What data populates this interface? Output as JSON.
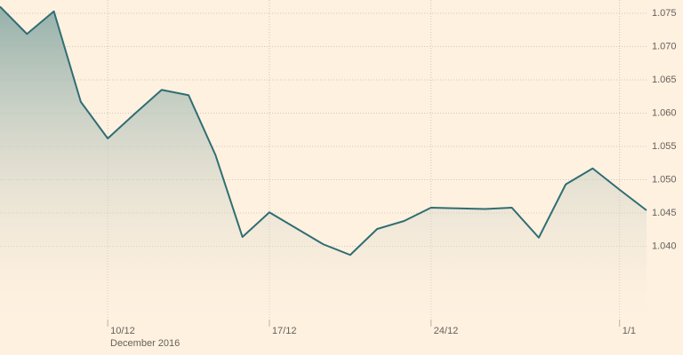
{
  "chart_data": {
    "type": "area",
    "categories": [
      null,
      null,
      null,
      null,
      "10/12",
      null,
      null,
      null,
      null,
      null,
      "17/12",
      null,
      null,
      null,
      null,
      null,
      "24/12",
      null,
      null,
      null,
      null,
      null,
      null,
      "1/1",
      null
    ],
    "x_sublabel": "December 2016",
    "values": [
      1.076,
      1.0719,
      1.0753,
      1.0617,
      1.0562,
      1.0599,
      1.0635,
      1.0627,
      1.0537,
      1.0414,
      1.0451,
      1.0427,
      1.0403,
      1.0387,
      1.0426,
      1.0438,
      1.0458,
      1.0457,
      1.0456,
      1.0458,
      1.0413,
      1.0493,
      1.0517,
      1.0485,
      1.0454
    ],
    "color": "#2f6e73",
    "ylim": [
      1.029,
      1.077
    ],
    "yticks": [
      {
        "value": 1.04,
        "label": "1.040"
      },
      {
        "value": 1.045,
        "label": "1.045"
      },
      {
        "value": 1.05,
        "label": "1.050"
      },
      {
        "value": 1.055,
        "label": "1.055"
      },
      {
        "value": 1.06,
        "label": "1.060"
      },
      {
        "value": 1.065,
        "label": "1.065"
      },
      {
        "value": 1.07,
        "label": "1.070"
      },
      {
        "value": 1.075,
        "label": "1.075"
      }
    ],
    "grid": true
  }
}
